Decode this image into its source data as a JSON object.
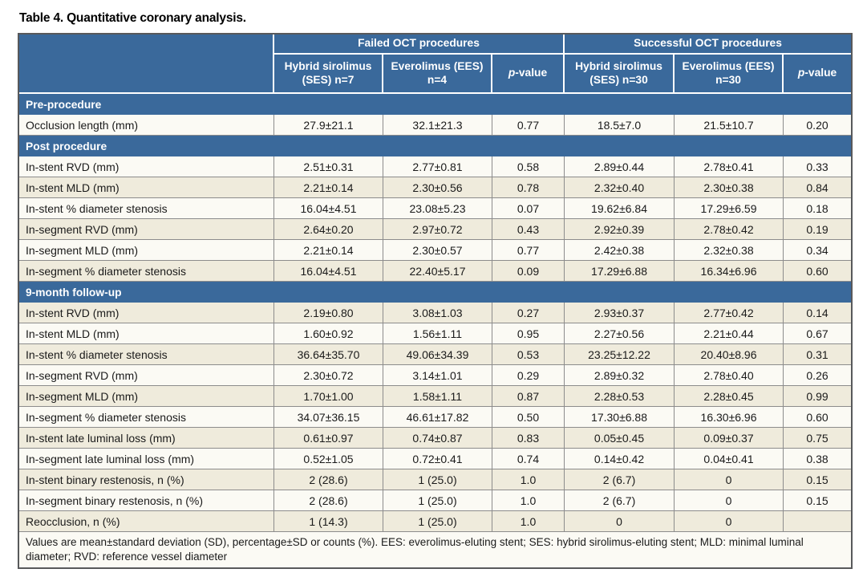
{
  "title": "Table 4. Quantitative coronary analysis.",
  "colors": {
    "header_blue": "#3a699b",
    "row_white": "#fbfaf4",
    "row_beige": "#efebdc",
    "grid_gray": "#8c8c8c",
    "outer_border": "#58595b",
    "header_text": "#ffffff",
    "body_text": "#1a1a1a"
  },
  "header": {
    "group1": "Failed OCT procedures",
    "group2": "Successful OCT procedures",
    "columns": [
      {
        "name": "col-failed-ses",
        "label": "Hybrid sirolimus (SES) n=7"
      },
      {
        "name": "col-failed-ees",
        "label": "Everolimus (EES) n=4"
      },
      {
        "name": "col-failed-pvalue",
        "italic_prefix": "p",
        "label": "-value"
      },
      {
        "name": "col-success-ses",
        "label": "Hybrid sirolimus (SES) n=30"
      },
      {
        "name": "col-success-ees",
        "label": "Everolimus (EES) n=30"
      },
      {
        "name": "col-success-pvalue",
        "italic_prefix": "p",
        "label": "-value"
      }
    ]
  },
  "sections": [
    {
      "label": "Pre-procedure",
      "first_shade": "white",
      "rows": [
        {
          "label": "Occlusion length (mm)",
          "values": [
            "27.9±21.1",
            "32.1±21.3",
            "0.77",
            "18.5±7.0",
            "21.5±10.7",
            "0.20"
          ]
        }
      ]
    },
    {
      "label": "Post procedure",
      "first_shade": "white",
      "rows": [
        {
          "label": "In-stent RVD (mm)",
          "values": [
            "2.51±0.31",
            "2.77±0.81",
            "0.58",
            "2.89±0.44",
            "2.78±0.41",
            "0.33"
          ]
        },
        {
          "label": "In-stent MLD (mm)",
          "values": [
            "2.21±0.14",
            "2.30±0.56",
            "0.78",
            "2.32±0.40",
            "2.30±0.38",
            "0.84"
          ]
        },
        {
          "label": "In-stent % diameter stenosis",
          "values": [
            "16.04±4.51",
            "23.08±5.23",
            "0.07",
            "19.62±6.84",
            "17.29±6.59",
            "0.18"
          ]
        },
        {
          "label": "In-segment RVD (mm)",
          "values": [
            "2.64±0.20",
            "2.97±0.72",
            "0.43",
            "2.92±0.39",
            "2.78±0.42",
            "0.19"
          ]
        },
        {
          "label": "In-segment MLD (mm)",
          "values": [
            "2.21±0.14",
            "2.30±0.57",
            "0.77",
            "2.42±0.38",
            "2.32±0.38",
            "0.34"
          ]
        },
        {
          "label": "In-segment % diameter stenosis",
          "values": [
            "16.04±4.51",
            "22.40±5.17",
            "0.09",
            "17.29±6.88",
            "16.34±6.96",
            "0.60"
          ]
        }
      ]
    },
    {
      "label": "9-month follow-up",
      "first_shade": "beige",
      "rows": [
        {
          "label": "In-stent RVD (mm)",
          "values": [
            "2.19±0.80",
            "3.08±1.03",
            "0.27",
            "2.93±0.37",
            "2.77±0.42",
            "0.14"
          ]
        },
        {
          "label": "In-stent MLD (mm)",
          "values": [
            "1.60±0.92",
            "1.56±1.11",
            "0.95",
            "2.27±0.56",
            "2.21±0.44",
            "0.67"
          ]
        },
        {
          "label": "In-stent % diameter stenosis",
          "values": [
            "36.64±35.70",
            "49.06±34.39",
            "0.53",
            "23.25±12.22",
            "20.40±8.96",
            "0.31"
          ]
        },
        {
          "label": "In-segment RVD (mm)",
          "values": [
            "2.30±0.72",
            "3.14±1.01",
            "0.29",
            "2.89±0.32",
            "2.78±0.40",
            "0.26"
          ]
        },
        {
          "label": "In-segment MLD (mm)",
          "values": [
            "1.70±1.00",
            "1.58±1.11",
            "0.87",
            "2.28±0.53",
            "2.28±0.45",
            "0.99"
          ]
        },
        {
          "label": "In-segment % diameter stenosis",
          "values": [
            "34.07±36.15",
            "46.61±17.82",
            "0.50",
            "17.30±6.88",
            "16.30±6.96",
            "0.60"
          ]
        },
        {
          "label": "In-stent late luminal loss (mm)",
          "values": [
            "0.61±0.97",
            "0.74±0.87",
            "0.83",
            "0.05±0.45",
            "0.09±0.37",
            "0.75"
          ]
        },
        {
          "label": "In-segment late luminal loss (mm)",
          "values": [
            "0.52±1.05",
            "0.72±0.41",
            "0.74",
            "0.14±0.42",
            "0.04±0.41",
            "0.38"
          ]
        },
        {
          "label": "In-stent binary restenosis, n (%)",
          "values": [
            "2 (28.6)",
            "1 (25.0)",
            "1.0",
            "2 (6.7)",
            "0",
            "0.15"
          ]
        },
        {
          "label": "In-segment binary restenosis, n (%)",
          "values": [
            "2 (28.6)",
            "1 (25.0)",
            "1.0",
            "2 (6.7)",
            "0",
            "0.15"
          ]
        },
        {
          "label": "Reocclusion, n (%)",
          "values": [
            "1 (14.3)",
            "1 (25.0)",
            "1.0",
            "0",
            "0",
            ""
          ]
        }
      ]
    }
  ],
  "footnote": "Values are mean±standard deviation (SD), percentage±SD or counts (%). EES: everolimus-eluting stent; SES: hybrid sirolimus-eluting stent; MLD: minimal luminal diameter; RVD: reference vessel diameter"
}
